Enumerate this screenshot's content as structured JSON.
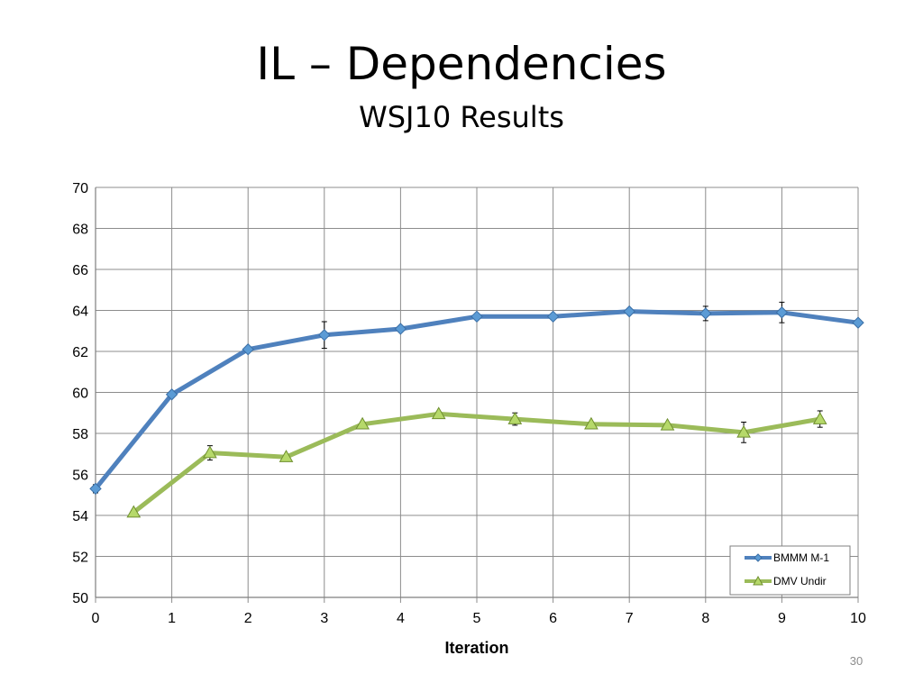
{
  "slide": {
    "title": "IL – Dependencies",
    "subtitle": "WSJ10 Results",
    "page_number": "30"
  },
  "chart_data": {
    "type": "line",
    "title": "",
    "xlabel": "Iteration",
    "ylabel": "",
    "xlim": [
      0,
      10
    ],
    "ylim": [
      50,
      70
    ],
    "x_ticks": [
      0,
      1,
      2,
      3,
      4,
      5,
      6,
      7,
      8,
      9,
      10
    ],
    "y_ticks": [
      50,
      52,
      54,
      56,
      58,
      60,
      62,
      64,
      66,
      68,
      70
    ],
    "grid": true,
    "legend_position": "bottom-right",
    "series": [
      {
        "name": "BMMM M-1",
        "color": "#4f81bd",
        "marker": "diamond",
        "marker_color": "#5b9bd5",
        "x": [
          0,
          1,
          2,
          3,
          4,
          5,
          6,
          7,
          8,
          9,
          10
        ],
        "y": [
          55.3,
          59.9,
          62.1,
          62.8,
          63.1,
          63.7,
          63.7,
          63.95,
          63.85,
          63.9,
          63.4
        ],
        "error": [
          0.2,
          0.1,
          0.1,
          0.65,
          0.1,
          0.1,
          0.1,
          0.1,
          0.35,
          0.5,
          0.1
        ]
      },
      {
        "name": "DMV Undir",
        "color": "#9bbb59",
        "marker": "triangle",
        "marker_color": "#b6d96a",
        "x": [
          0.5,
          1.5,
          2.5,
          3.5,
          4.5,
          5.5,
          6.5,
          7.5,
          8.5,
          9.5
        ],
        "y": [
          54.15,
          57.05,
          56.85,
          58.45,
          58.95,
          58.7,
          58.45,
          58.4,
          58.05,
          58.7
        ],
        "error": [
          0.1,
          0.35,
          0.1,
          0.1,
          0.1,
          0.3,
          0.1,
          0.1,
          0.5,
          0.4
        ]
      }
    ]
  }
}
